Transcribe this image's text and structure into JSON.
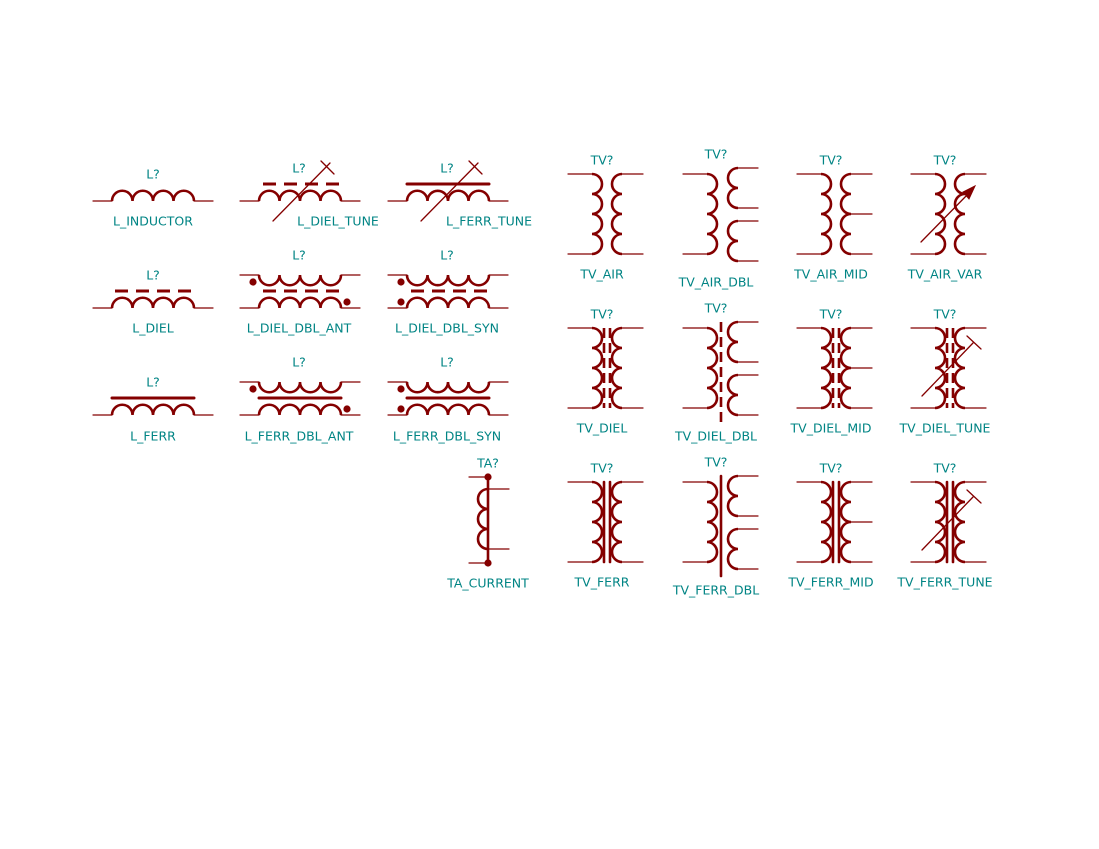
{
  "colors": {
    "symbol": "#840000",
    "text": "#008484",
    "background": "#ffffff"
  },
  "symbols": [
    {
      "ref": "L?",
      "name": "L_INDUCTOR"
    },
    {
      "ref": "L?",
      "name": "L_DIEL_TUNE"
    },
    {
      "ref": "L?",
      "name": "L_FERR_TUNE"
    },
    {
      "ref": "L?",
      "name": "L_DIEL"
    },
    {
      "ref": "L?",
      "name": "L_DIEL_DBL_ANT"
    },
    {
      "ref": "L?",
      "name": "L_DIEL_DBL_SYN"
    },
    {
      "ref": "L?",
      "name": "L_FERR"
    },
    {
      "ref": "L?",
      "name": "L_FERR_DBL_ANT"
    },
    {
      "ref": "L?",
      "name": "L_FERR_DBL_SYN"
    },
    {
      "ref": "TV?",
      "name": "TV_AIR"
    },
    {
      "ref": "TV?",
      "name": "TV_AIR_DBL"
    },
    {
      "ref": "TV?",
      "name": "TV_AIR_MID"
    },
    {
      "ref": "TV?",
      "name": "TV_AIR_VAR"
    },
    {
      "ref": "TV?",
      "name": "TV_DIEL"
    },
    {
      "ref": "TV?",
      "name": "TV_DIEL_DBL"
    },
    {
      "ref": "TV?",
      "name": "TV_DIEL_MID"
    },
    {
      "ref": "TV?",
      "name": "TV_DIEL_TUNE"
    },
    {
      "ref": "TA?",
      "name": "TA_CURRENT"
    },
    {
      "ref": "TV?",
      "name": "TV_FERR"
    },
    {
      "ref": "TV?",
      "name": "TV_FERR_DBL"
    },
    {
      "ref": "TV?",
      "name": "TV_FERR_MID"
    },
    {
      "ref": "TV?",
      "name": "TV_FERR_TUNE"
    }
  ]
}
